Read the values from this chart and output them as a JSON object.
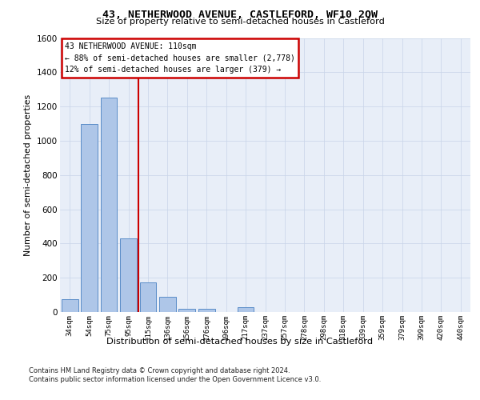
{
  "title": "43, NETHERWOOD AVENUE, CASTLEFORD, WF10 2QW",
  "subtitle": "Size of property relative to semi-detached houses in Castleford",
  "xlabel": "Distribution of semi-detached houses by size in Castleford",
  "ylabel": "Number of semi-detached properties",
  "categories": [
    "34sqm",
    "54sqm",
    "75sqm",
    "95sqm",
    "115sqm",
    "136sqm",
    "156sqm",
    "176sqm",
    "196sqm",
    "217sqm",
    "237sqm",
    "257sqm",
    "278sqm",
    "298sqm",
    "318sqm",
    "339sqm",
    "359sqm",
    "379sqm",
    "399sqm",
    "420sqm",
    "440sqm"
  ],
  "values": [
    75,
    1100,
    1250,
    430,
    175,
    90,
    20,
    20,
    0,
    30,
    0,
    0,
    0,
    0,
    0,
    0,
    0,
    0,
    0,
    0,
    0
  ],
  "bar_color": "#aec6e8",
  "bar_edge_color": "#5b8dc8",
  "property_line_color": "#cc0000",
  "property_line_x": 3.5,
  "annotation_text_line1": "43 NETHERWOOD AVENUE: 110sqm",
  "annotation_text_line2": "← 88% of semi-detached houses are smaller (2,778)",
  "annotation_text_line3": "12% of semi-detached houses are larger (379) →",
  "annotation_box_facecolor": "#ffffff",
  "annotation_box_edgecolor": "#cc0000",
  "ylim": [
    0,
    1600
  ],
  "yticks": [
    0,
    200,
    400,
    600,
    800,
    1000,
    1200,
    1400,
    1600
  ],
  "grid_color": "#c8d4e8",
  "plot_bg_color": "#e8eef8",
  "footer_line1": "Contains HM Land Registry data © Crown copyright and database right 2024.",
  "footer_line2": "Contains public sector information licensed under the Open Government Licence v3.0."
}
